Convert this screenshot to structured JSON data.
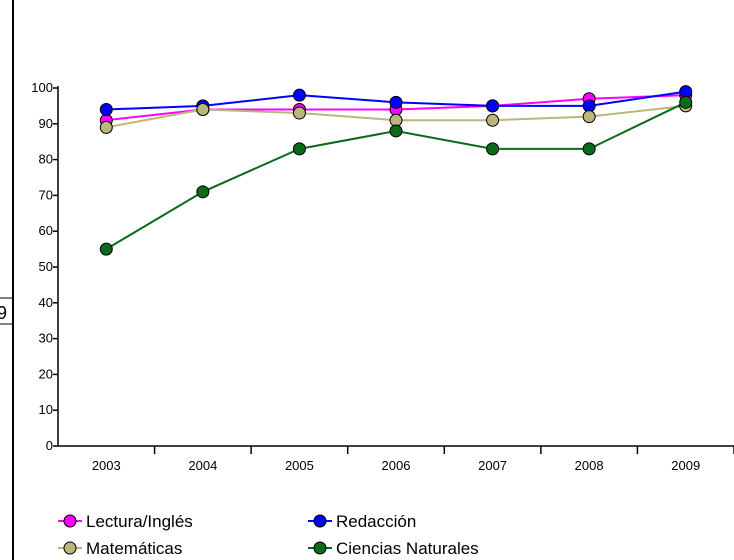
{
  "chart_data": {
    "type": "line",
    "title": "",
    "xlabel": "",
    "ylabel": "",
    "side_text": "9",
    "categories": [
      "2003",
      "2004",
      "2005",
      "2006",
      "2007",
      "2008",
      "2009"
    ],
    "ylim": [
      0,
      100
    ],
    "yticks": [
      "0",
      "10",
      "20",
      "30",
      "40",
      "50",
      "60",
      "70",
      "80",
      "90",
      "100"
    ],
    "grid": false,
    "legend_position": "bottom",
    "series": [
      {
        "name": "Lectura/Inglés",
        "color": "#ff00ff",
        "values": [
          91,
          94,
          94,
          94,
          95,
          97,
          98
        ]
      },
      {
        "name": "Redacción",
        "color": "#0000ff",
        "values": [
          94,
          95,
          98,
          96,
          95,
          95,
          99
        ]
      },
      {
        "name": "Matemáticas",
        "color": "#bcb67c",
        "values": [
          89,
          94,
          93,
          91,
          91,
          92,
          95
        ]
      },
      {
        "name": "Ciencias Naturales",
        "color": "#0b6b1a",
        "values": [
          55,
          71,
          83,
          88,
          83,
          83,
          96
        ]
      }
    ]
  }
}
